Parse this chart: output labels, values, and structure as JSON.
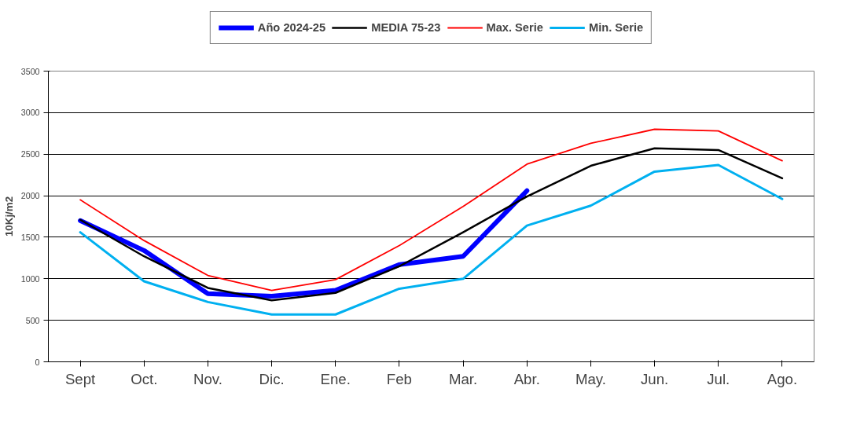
{
  "chart_data": {
    "type": "line",
    "ylabel": "10Kj/m2",
    "categories": [
      "Sept",
      "Oct.",
      "Nov.",
      "Dic.",
      "Ene.",
      "Feb",
      "Mar.",
      "Abr.",
      "May.",
      "Jun.",
      "Jul.",
      "Ago."
    ],
    "series": [
      {
        "name": "Año 2024-25",
        "color": "#0000ff",
        "values": [
          1700,
          1340,
          820,
          790,
          860,
          1170,
          1270,
          2060,
          null,
          null,
          null,
          null
        ]
      },
      {
        "name": "MEDIA 75-23",
        "color": "#000000",
        "values": [
          1710,
          1270,
          890,
          740,
          830,
          1150,
          1560,
          1990,
          2360,
          2570,
          2550,
          2210
        ]
      },
      {
        "name": "Max. Serie",
        "color": "#ff0000",
        "values": [
          1950,
          1460,
          1040,
          860,
          990,
          1400,
          1870,
          2380,
          2630,
          2800,
          2780,
          2420
        ]
      },
      {
        "name": "Min. Serie",
        "color": "#00b0f0",
        "values": [
          1560,
          970,
          720,
          570,
          570,
          880,
          1000,
          1640,
          1880,
          2290,
          2370,
          1960
        ]
      }
    ],
    "ylim": [
      0,
      3500
    ],
    "yticks": [
      0,
      500,
      1000,
      1500,
      2000,
      2500,
      3000,
      3500
    ],
    "grid": "y",
    "legend": "top"
  }
}
